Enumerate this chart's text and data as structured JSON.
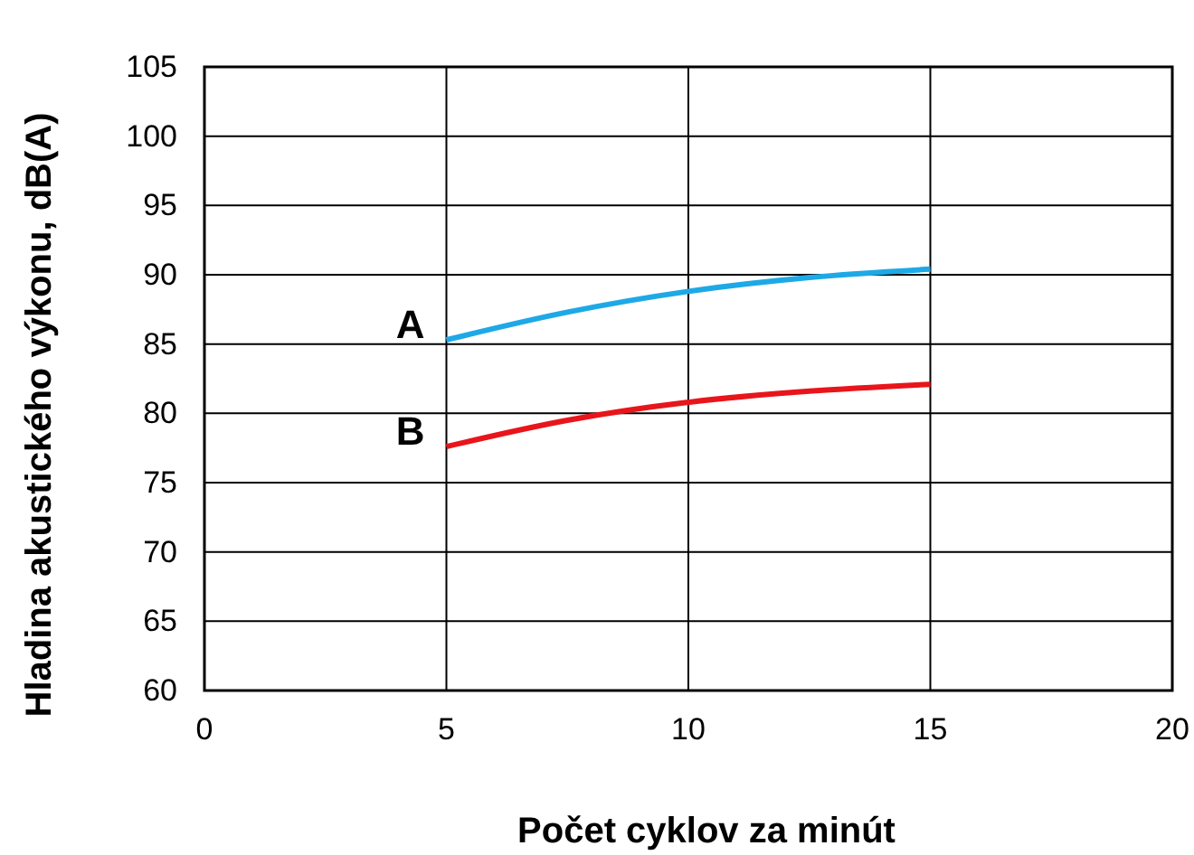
{
  "chart_data": {
    "type": "line",
    "xlabel": "Počet cyklov za minút",
    "ylabel": "Hladina akustického výkonu, dB(A)",
    "xlim": [
      0,
      20
    ],
    "xticks": [
      0,
      5,
      10,
      15,
      20
    ],
    "ylim": [
      60,
      105
    ],
    "yticks": [
      60,
      65,
      70,
      75,
      80,
      85,
      90,
      95,
      100,
      105
    ],
    "grid": true,
    "series": [
      {
        "name": "A",
        "color": "#1ea9e6",
        "x": [
          5,
          7.5,
          10,
          12.5,
          15
        ],
        "values": [
          85.3,
          87.3,
          88.8,
          89.8,
          90.4
        ]
      },
      {
        "name": "B",
        "color": "#e8151b",
        "x": [
          5,
          7.5,
          10,
          12.5,
          15
        ],
        "values": [
          77.6,
          79.5,
          80.8,
          81.6,
          82.1
        ]
      }
    ]
  }
}
